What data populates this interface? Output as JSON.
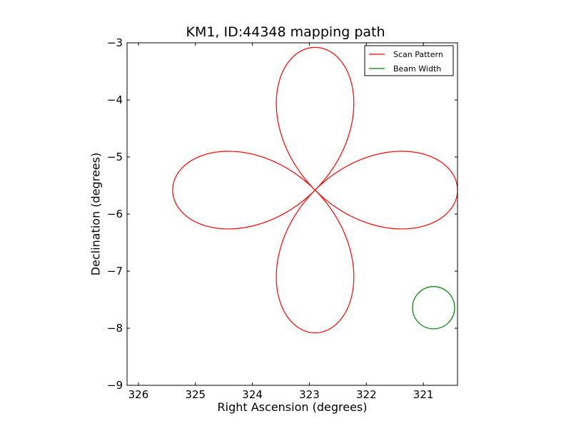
{
  "chart_data": {
    "type": "line",
    "title": "KM1, ID:44348 mapping path",
    "xlabel": "Right Ascension (degrees)",
    "ylabel": "Declination (degrees)",
    "xlim": [
      326.2,
      320.4
    ],
    "ylim": [
      -9,
      -3
    ],
    "x_ticks": [
      326,
      325,
      324,
      323,
      322,
      321
    ],
    "x_tick_labels": [
      "326",
      "325",
      "324",
      "323",
      "322",
      "321"
    ],
    "y_ticks": [
      -3,
      -4,
      -5,
      -6,
      -7,
      -8,
      -9
    ],
    "y_tick_labels": [
      "−3",
      "−4",
      "−5",
      "−6",
      "−7",
      "−8",
      "−9"
    ],
    "grid": false,
    "legend_position": "top-right",
    "series": [
      {
        "name": "Scan Pattern",
        "color": "#ff0000",
        "kind": "four-petal rosette",
        "center": [
          322.9,
          -5.58
        ],
        "petal_radius": 2.5
      },
      {
        "name": "Beam Width",
        "color": "#008000",
        "kind": "circle",
        "center": [
          320.82,
          -7.64
        ],
        "radius": 0.37
      }
    ]
  }
}
